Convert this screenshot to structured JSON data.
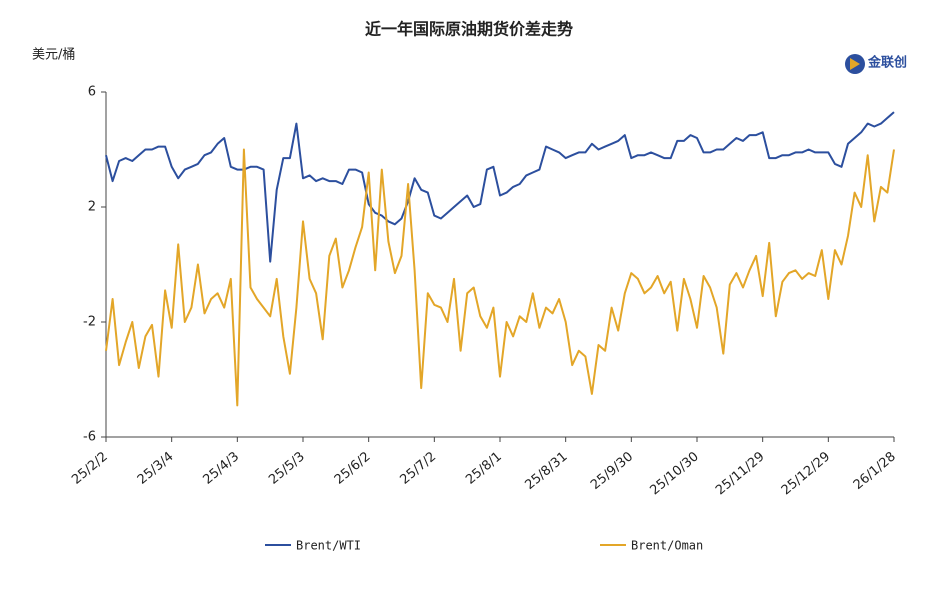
{
  "chart_data": {
    "type": "line",
    "title": "近一年国际原油期货价差走势",
    "y_label": "美元/桶",
    "logo": "金联创",
    "categories": [
      "25/2/2",
      null,
      null,
      null,
      null,
      null,
      null,
      null,
      null,
      null,
      "25/3/4",
      null,
      null,
      null,
      null,
      null,
      null,
      null,
      null,
      null,
      "25/4/3",
      null,
      null,
      null,
      null,
      null,
      null,
      null,
      null,
      null,
      "25/5/3",
      null,
      null,
      null,
      null,
      null,
      null,
      null,
      null,
      null,
      "25/6/2",
      null,
      null,
      null,
      null,
      null,
      null,
      null,
      null,
      null,
      "25/7/2",
      null,
      null,
      null,
      null,
      null,
      null,
      null,
      null,
      null,
      "25/8/1",
      null,
      null,
      null,
      null,
      null,
      null,
      null,
      null,
      null,
      "25/8/31",
      null,
      null,
      null,
      null,
      null,
      null,
      null,
      null,
      null,
      "25/9/30",
      null,
      null,
      null,
      null,
      null,
      null,
      null,
      null,
      null,
      "25/10/30",
      null,
      null,
      null,
      null,
      null,
      null,
      null,
      null,
      null,
      "25/11/29",
      null,
      null,
      null,
      null,
      null,
      null,
      null,
      null,
      null,
      "25/12/29",
      null,
      null,
      null,
      null,
      null,
      null,
      null,
      null,
      null,
      "26/1/28"
    ],
    "series": [
      {
        "name": "Brent/WTI",
        "color": "#2c4f9e",
        "values": [
          3.8,
          2.9,
          3.6,
          3.7,
          3.6,
          3.8,
          4.0,
          4.0,
          4.1,
          4.1,
          3.4,
          3.0,
          3.3,
          3.4,
          3.5,
          3.8,
          3.9,
          4.2,
          4.4,
          3.4,
          3.3,
          3.3,
          3.4,
          3.4,
          3.3,
          0.1,
          2.6,
          3.7,
          3.7,
          4.9,
          3.0,
          3.1,
          2.9,
          3.0,
          2.9,
          2.9,
          2.8,
          3.3,
          3.3,
          3.2,
          2.1,
          1.8,
          1.7,
          1.5,
          1.4,
          1.6,
          2.2,
          3.0,
          2.6,
          2.5,
          1.7,
          1.6,
          1.8,
          2.0,
          2.2,
          2.4,
          2.0,
          2.1,
          3.3,
          3.4,
          2.4,
          2.5,
          2.7,
          2.8,
          3.1,
          3.2,
          3.3,
          4.1,
          4.0,
          3.9,
          3.7,
          3.8,
          3.9,
          3.9,
          4.2,
          4.0,
          4.1,
          4.2,
          4.3,
          4.5,
          3.7,
          3.8,
          3.8,
          3.9,
          3.8,
          3.7,
          3.7,
          4.3,
          4.3,
          4.5,
          4.4,
          3.9,
          3.9,
          4.0,
          4.0,
          4.2,
          4.4,
          4.3,
          4.5,
          4.5,
          4.6,
          3.7,
          3.7,
          3.8,
          3.8,
          3.9,
          3.9,
          4.0,
          3.9,
          3.9,
          3.9,
          3.5,
          3.4,
          4.2,
          4.4,
          4.6,
          4.9,
          4.8,
          4.9,
          5.1,
          5.3
        ]
      },
      {
        "name": "Brent/Oman",
        "color": "#e3a628",
        "values": [
          -3.0,
          -1.2,
          -3.5,
          -2.7,
          -2.0,
          -3.6,
          -2.5,
          -2.1,
          -3.9,
          -0.9,
          -2.2,
          0.7,
          -2.0,
          -1.5,
          0.0,
          -1.7,
          -1.2,
          -1.0,
          -1.5,
          -0.5,
          -4.9,
          4.0,
          -0.8,
          -1.2,
          -1.5,
          -1.8,
          -0.5,
          -2.5,
          -3.8,
          -1.5,
          1.5,
          -0.5,
          -1.0,
          -2.6,
          0.3,
          0.9,
          -0.8,
          -0.2,
          0.6,
          1.3,
          3.2,
          -0.2,
          3.3,
          0.8,
          -0.3,
          0.3,
          2.8,
          -0.2,
          -4.3,
          -1.0,
          -1.4,
          -1.5,
          -2.0,
          -0.5,
          -3.0,
          -1.0,
          -0.8,
          -1.8,
          -2.2,
          -1.5,
          -3.9,
          -2.0,
          -2.5,
          -1.8,
          -2.0,
          -1.0,
          -2.2,
          -1.5,
          -1.7,
          -1.2,
          -2.0,
          -3.5,
          -3.0,
          -3.2,
          -4.5,
          -2.8,
          -3.0,
          -1.5,
          -2.3,
          -1.0,
          -0.3,
          -0.5,
          -1.0,
          -0.8,
          -0.4,
          -1.0,
          -0.6,
          -2.3,
          -0.5,
          -1.2,
          -2.2,
          -0.4,
          -0.8,
          -1.5,
          -3.1,
          -0.7,
          -0.3,
          -0.8,
          -0.2,
          0.3,
          -1.1,
          0.75,
          -1.8,
          -0.6,
          -0.3,
          -0.2,
          -0.5,
          -0.3,
          -0.4,
          0.5,
          -1.2,
          0.5,
          0.0,
          1.0,
          2.5,
          2.0,
          3.8,
          1.5,
          2.7,
          2.5,
          4.0
        ]
      }
    ],
    "ylim": [
      -6,
      6
    ],
    "yticks": [
      6,
      2,
      -2,
      -6
    ]
  }
}
